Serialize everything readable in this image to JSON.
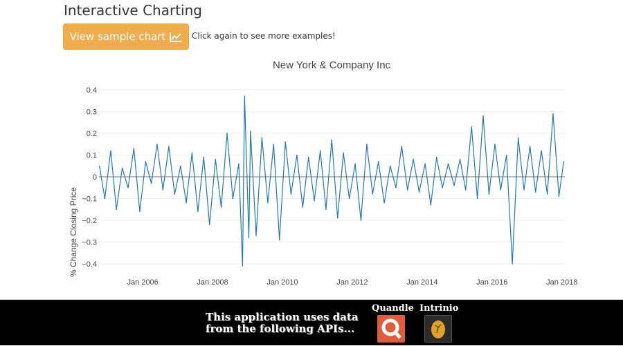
{
  "page": {
    "heading": "Interactive Charting",
    "sample_button_label": "View sample chart",
    "hint": "Click again to see more examples!"
  },
  "colors": {
    "button_bg": "#f0ad4e",
    "series_line": "#1f77b4",
    "quandl_logo": "#e05d3c",
    "intrinio_logo": "#2b2b2b",
    "intrinio_mark": "#e0a12a"
  },
  "icons": {
    "button_icon": "line-chart-icon",
    "quandl": "quandl-logo",
    "intrinio": "intrinio-logo"
  },
  "footer": {
    "line1": "This application uses data",
    "line2": "from the following APIs...",
    "quandl_label": "Quandle",
    "intrinio_label": "Intrinio"
  },
  "chart_data": {
    "type": "line",
    "title": "New York & Company Inc",
    "xlabel": "",
    "ylabel": "% Change Closing Price",
    "x_range": [
      "2004-10-01",
      "2018-02-01"
    ],
    "ylim": [
      -0.41,
      0.41
    ],
    "yticks": [
      -0.4,
      -0.3,
      -0.2,
      -0.1,
      0,
      0.1,
      0.2,
      0.3,
      0.4
    ],
    "ytick_labels": [
      "−0.4",
      "−0.3",
      "−0.2",
      "−0.1",
      "0",
      "0.1",
      "0.2",
      "0.3",
      "0.4"
    ],
    "xticks": [
      "2006-01-01",
      "2008-01-01",
      "2010-01-01",
      "2012-01-01",
      "2014-01-01",
      "2016-01-01",
      "2018-01-01"
    ],
    "xtick_labels": [
      "Jan 2006",
      "Jan 2008",
      "Jan 2010",
      "Jan 2012",
      "Jan 2014",
      "Jan 2016",
      "Jan 2018"
    ],
    "grid": true,
    "series": [
      {
        "x": [
          "2004-10-05",
          "2004-12-01",
          "2005-02-01",
          "2005-04-01",
          "2005-06-01",
          "2005-08-01",
          "2005-10-01",
          "2005-12-01",
          "2006-02-01",
          "2006-04-01",
          "2006-06-01",
          "2006-08-01",
          "2006-10-01",
          "2006-12-01",
          "2007-02-01",
          "2007-04-01",
          "2007-06-01",
          "2007-08-01",
          "2007-10-01",
          "2007-12-01",
          "2008-02-01",
          "2008-04-01",
          "2008-06-01",
          "2008-08-01",
          "2008-10-01",
          "2008-11-10",
          "2008-12-01",
          "2009-01-15",
          "2009-02-01",
          "2009-04-01",
          "2009-06-01",
          "2009-08-01",
          "2009-10-01",
          "2009-12-01",
          "2010-02-01",
          "2010-04-01",
          "2010-06-01",
          "2010-08-01",
          "2010-10-01",
          "2010-12-01",
          "2011-02-01",
          "2011-04-01",
          "2011-06-01",
          "2011-08-01",
          "2011-10-01",
          "2011-12-01",
          "2012-02-01",
          "2012-04-01",
          "2012-06-01",
          "2012-08-01",
          "2012-10-01",
          "2012-12-01",
          "2013-02-01",
          "2013-04-01",
          "2013-06-01",
          "2013-08-01",
          "2013-10-01",
          "2013-12-01",
          "2014-02-01",
          "2014-04-01",
          "2014-06-01",
          "2014-08-01",
          "2014-10-01",
          "2014-12-01",
          "2015-02-01",
          "2015-04-01",
          "2015-06-01",
          "2015-08-01",
          "2015-10-01",
          "2015-12-01",
          "2016-02-01",
          "2016-04-01",
          "2016-06-01",
          "2016-08-01",
          "2016-10-01",
          "2016-12-01",
          "2017-02-01",
          "2017-04-01",
          "2017-06-01",
          "2017-08-01",
          "2017-10-01",
          "2017-12-01",
          "2018-01-20"
        ],
        "y": [
          0.05,
          -0.1,
          0.12,
          -0.15,
          0.04,
          -0.05,
          0.13,
          -0.16,
          0.07,
          -0.03,
          0.15,
          -0.06,
          0.14,
          -0.08,
          0.05,
          -0.12,
          0.11,
          -0.16,
          0.09,
          -0.22,
          0.08,
          -0.14,
          0.2,
          -0.1,
          0.06,
          -0.41,
          0.37,
          -0.28,
          0.21,
          -0.27,
          0.18,
          -0.12,
          0.15,
          -0.29,
          0.16,
          -0.08,
          0.1,
          -0.14,
          0.09,
          -0.11,
          0.12,
          -0.15,
          0.17,
          -0.19,
          0.11,
          -0.1,
          0.06,
          -0.2,
          0.15,
          -0.08,
          0.07,
          -0.12,
          0.05,
          -0.05,
          0.14,
          -0.06,
          0.08,
          -0.07,
          0.06,
          -0.13,
          0.09,
          -0.05,
          0.06,
          -0.04,
          0.08,
          -0.06,
          0.23,
          -0.1,
          0.28,
          -0.08,
          0.15,
          -0.06,
          0.1,
          -0.4,
          0.18,
          -0.06,
          0.14,
          -0.07,
          0.12,
          -0.08,
          0.29,
          -0.09,
          0.07
        ]
      }
    ]
  }
}
